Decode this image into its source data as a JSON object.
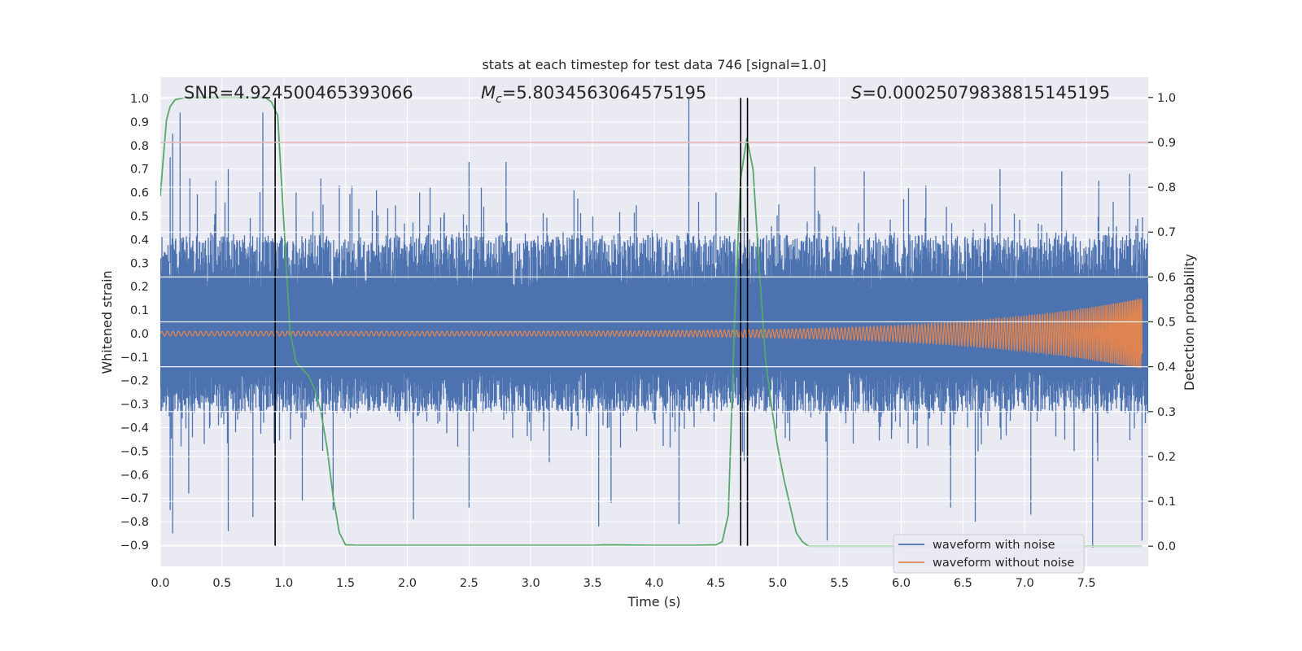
{
  "chart_data": {
    "type": "line",
    "title": "stats at each timestep for test data 746 [signal=1.0]",
    "xlabel": "Time (s)",
    "ylabel_left": "Whitened strain",
    "ylabel_right": "Detection probability",
    "xlim": [
      0.0,
      8.0
    ],
    "ylim_left": [
      -0.99,
      1.09
    ],
    "ylim_right": [
      -0.045,
      1.045
    ],
    "x_ticks": [
      "0.0",
      "0.5",
      "1.0",
      "1.5",
      "2.0",
      "2.5",
      "3.0",
      "3.5",
      "4.0",
      "4.5",
      "5.0",
      "5.5",
      "6.0",
      "6.5",
      "7.0",
      "7.5"
    ],
    "y_ticks_left": [
      "1.0",
      "0.9",
      "0.8",
      "0.7",
      "0.6",
      "0.5",
      "0.4",
      "0.3",
      "0.2",
      "0.1",
      "0.0",
      "−0.1",
      "−0.2",
      "−0.3",
      "−0.4",
      "−0.5",
      "−0.6",
      "−0.7",
      "−0.8",
      "−0.9"
    ],
    "y_ticks_right": [
      "1.0",
      "0.9",
      "0.8",
      "0.7",
      "0.6",
      "0.5",
      "0.4",
      "0.3",
      "0.2",
      "0.1",
      "0.0"
    ],
    "annotations": {
      "snr": "SNR=4.924500465393066",
      "mc_symbol": "M",
      "mc_sub": "c",
      "mc_value": "=5.8034563064575195",
      "s_symbol": "S",
      "s_value": "=0.00025079838815145195"
    },
    "legend": {
      "placement": "lower-right",
      "entries": [
        "waveform with noise",
        "waveform without noise"
      ]
    },
    "colors": {
      "noise": "#4c72b0",
      "clean": "#dd8452",
      "probability": "#55a868",
      "threshold": "#c44e52",
      "marker": "#000000",
      "axes_bg": "#eaeaf2",
      "grid": "#ffffff"
    },
    "noise_envelope": {
      "upper_base": 0.42,
      "lower_base": -0.34,
      "upper_spikes": [
        [
          0.08,
          0.75
        ],
        [
          0.1,
          0.85
        ],
        [
          0.16,
          0.94
        ],
        [
          0.24,
          0.66
        ],
        [
          0.45,
          0.65
        ],
        [
          0.55,
          0.7
        ],
        [
          0.83,
          0.94
        ],
        [
          1.1,
          0.6
        ],
        [
          1.3,
          0.66
        ],
        [
          1.45,
          0.63
        ],
        [
          1.75,
          0.61
        ],
        [
          2.1,
          0.6
        ],
        [
          2.5,
          0.73
        ],
        [
          2.8,
          0.73
        ],
        [
          3.35,
          0.61
        ],
        [
          4.28,
          1.0
        ],
        [
          4.5,
          0.6
        ],
        [
          5.3,
          0.71
        ],
        [
          5.7,
          0.69
        ],
        [
          6.2,
          0.63
        ],
        [
          6.8,
          0.7
        ],
        [
          7.3,
          0.69
        ],
        [
          7.6,
          0.65
        ],
        [
          7.85,
          0.68
        ]
      ],
      "lower_spikes": [
        [
          0.08,
          -0.75
        ],
        [
          0.1,
          -0.85
        ],
        [
          0.23,
          -0.68
        ],
        [
          0.55,
          -0.84
        ],
        [
          0.75,
          -0.78
        ],
        [
          1.15,
          -0.71
        ],
        [
          1.4,
          -0.75
        ],
        [
          2.05,
          -0.79
        ],
        [
          2.5,
          -0.74
        ],
        [
          3.55,
          -0.82
        ],
        [
          3.65,
          -0.72
        ],
        [
          4.2,
          -0.81
        ],
        [
          5.4,
          -0.88
        ],
        [
          6.4,
          -0.74
        ],
        [
          6.6,
          -0.8
        ],
        [
          7.05,
          -0.77
        ],
        [
          7.55,
          -0.91
        ],
        [
          7.95,
          -0.88
        ]
      ]
    },
    "series": [
      {
        "name": "waveform without noise",
        "axis": "left",
        "amplitude_start": 0.01,
        "amplitude_end": 0.15,
        "tau_s": 8.15,
        "frequency_start_hz": 22.0
      },
      {
        "axis": "right",
        "x": [
          0.0,
          0.02,
          0.05,
          0.08,
          0.12,
          0.2,
          0.3,
          0.5,
          0.7,
          0.85,
          0.9,
          0.95,
          1.0,
          1.05,
          1.1,
          1.2,
          1.25,
          1.3,
          1.35,
          1.4,
          1.45,
          1.5,
          1.6,
          2.0,
          3.0,
          3.5,
          3.6,
          4.0,
          4.3,
          4.5,
          4.55,
          4.6,
          4.65,
          4.7,
          4.75,
          4.8,
          4.85,
          4.9,
          4.95,
          5.0,
          5.05,
          5.1,
          5.15,
          5.2,
          5.25,
          5.5,
          6.0,
          7.0,
          7.95
        ],
        "y": [
          0.78,
          0.85,
          0.95,
          0.98,
          0.995,
          1.0,
          1.0,
          1.0,
          1.0,
          1.0,
          0.99,
          0.96,
          0.72,
          0.48,
          0.41,
          0.38,
          0.35,
          0.3,
          0.22,
          0.11,
          0.03,
          0.003,
          0.002,
          0.002,
          0.002,
          0.002,
          0.003,
          0.002,
          0.002,
          0.003,
          0.01,
          0.07,
          0.5,
          0.82,
          0.91,
          0.84,
          0.62,
          0.42,
          0.31,
          0.22,
          0.15,
          0.09,
          0.03,
          0.01,
          0.0,
          0.0,
          0.0,
          0.0,
          0.0
        ]
      }
    ],
    "threshold_probability": 0.9,
    "marker_lines_s": [
      0.93,
      4.7,
      4.755
    ]
  }
}
